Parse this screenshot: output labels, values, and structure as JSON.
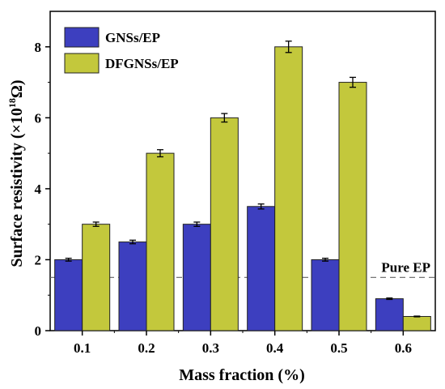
{
  "chart_data": {
    "type": "bar",
    "categories": [
      "0.1",
      "0.2",
      "0.3",
      "0.4",
      "0.5",
      "0.6"
    ],
    "series": [
      {
        "name": "GNSs/EP",
        "color": "#3d3fbf",
        "values": [
          2.0,
          2.5,
          3.0,
          3.5,
          2.0,
          0.9
        ],
        "errors": [
          0.04,
          0.05,
          0.06,
          0.07,
          0.04,
          0.02
        ]
      },
      {
        "name": "DFGNSs/EP",
        "color": "#c3c83c",
        "values": [
          3.0,
          5.0,
          6.0,
          8.0,
          7.0,
          0.4
        ],
        "errors": [
          0.06,
          0.1,
          0.12,
          0.16,
          0.14,
          0.01
        ]
      }
    ],
    "xlabel": "Mass fraction (%)",
    "ylabel_main": "Surface resistivity (×10",
    "ylabel_sup": "18",
    "ylabel_end": "Ω)",
    "ylim": [
      0,
      9
    ],
    "yticks": [
      "0",
      "2",
      "4",
      "6",
      "8"
    ],
    "reference_line": {
      "label": "Pure EP",
      "value": 1.5
    },
    "legend_position": "top-left",
    "grid": false
  }
}
